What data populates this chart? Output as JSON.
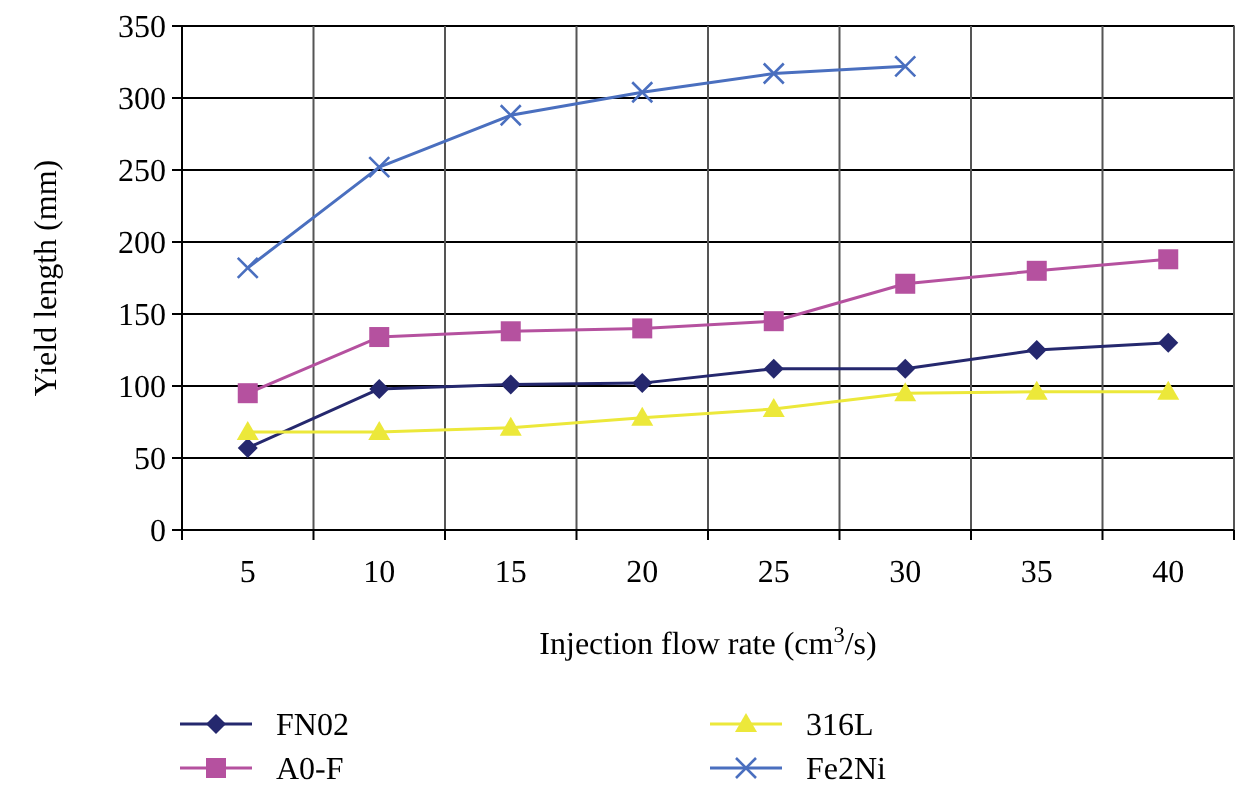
{
  "chart_data": {
    "type": "line",
    "xlabel": "Injection flow rate (cm$^{3}$/s)",
    "ylabel": "Yield length (mm)",
    "categories": [
      "5",
      "10",
      "15",
      "20",
      "25",
      "30",
      "35",
      "40"
    ],
    "series": [
      {
        "name": "FN02",
        "color": "#25286e",
        "marker": "diamond",
        "values": [
          57,
          98,
          101,
          102,
          112,
          112,
          125,
          130
        ]
      },
      {
        "name": "A0-F",
        "color": "#b5519f",
        "marker": "square",
        "values": [
          95,
          134,
          138,
          140,
          145,
          171,
          180,
          188
        ]
      },
      {
        "name": "316L",
        "color": "#ece83a",
        "marker": "triangle",
        "values": [
          68,
          68,
          71,
          78,
          84,
          95,
          96,
          96
        ]
      },
      {
        "name": "Fe2Ni",
        "color": "#4a6fbf",
        "marker": "cross",
        "values": [
          182,
          252,
          288,
          304,
          317,
          322,
          null,
          null
        ]
      }
    ],
    "ylim": [
      0,
      350
    ],
    "yticks": [
      0,
      50,
      100,
      150,
      200,
      250,
      300,
      350
    ],
    "grid": true,
    "legend": "bottom"
  }
}
